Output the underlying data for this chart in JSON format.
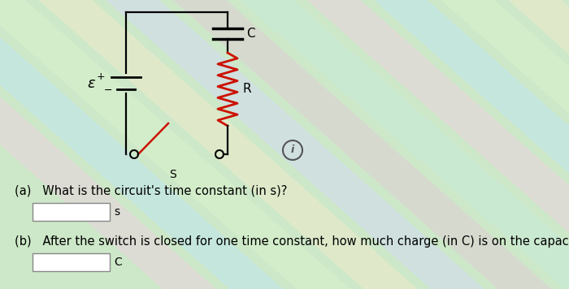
{
  "bg_color": "#cde8c8",
  "stripe_colors": [
    "#e8d0e0",
    "#d0e8f0",
    "#e8f0d0",
    "#f0e8c8",
    "#d8e0f8"
  ],
  "text_epsilon": "ε",
  "text_plus": "+",
  "text_minus": "−",
  "text_C": "C",
  "text_R": "R",
  "text_S": "S",
  "question_a": "(a)   What is the circuit's time constant (in s)?",
  "question_b": "(b)   After the switch is closed for one time constant, how much charge (in C) is on the capacitor?",
  "unit_a": "s",
  "unit_b": "C",
  "font_size_q": 10.5,
  "resistor_color": "#cc1100",
  "switch_color": "#cc1100",
  "wire_color": "#000000",
  "circuit_lw": 1.6
}
